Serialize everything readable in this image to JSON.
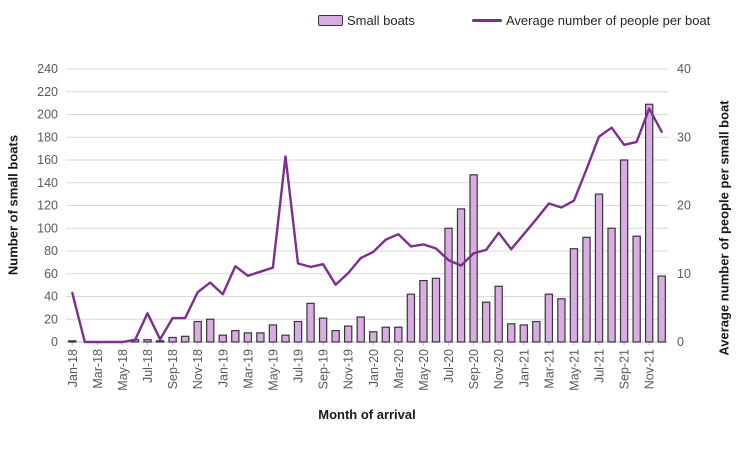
{
  "legend": {
    "bars_label": "Small boats",
    "line_label": "Average number of people per boat"
  },
  "axes": {
    "left_title": "Number of small boats",
    "right_title": "Average number of people per small boat",
    "x_title": "Month of arrival",
    "left_tick_labels": [
      "0",
      "20",
      "40",
      "60",
      "80",
      "100",
      "120",
      "140",
      "160",
      "180",
      "200",
      "220",
      "240"
    ],
    "right_tick_labels": [
      "0",
      "10",
      "20",
      "30",
      "40"
    ],
    "left_max": 240,
    "right_max": 40,
    "grid": "horizontal"
  },
  "colors": {
    "bar_fill": "#d8aee0",
    "bar_stroke": "#3a3340",
    "line": "#7d2e8e",
    "gridline": "#d9d9d9",
    "axis_line": "#bfbfbf",
    "tick_text": "#595959",
    "background": "#ffffff"
  },
  "chart_data": {
    "type": "bar",
    "subtype": "bar+line combo, dual axis",
    "title": "",
    "xlabel": "Month of arrival",
    "ylabel_left": "Number of small boats",
    "ylabel_right": "Average number of people per small boat",
    "ylim_left": [
      0,
      240
    ],
    "ylim_right": [
      0,
      40
    ],
    "legend_position": "top",
    "categories": [
      "Jan-18",
      "Feb-18",
      "Mar-18",
      "Apr-18",
      "May-18",
      "Jun-18",
      "Jul-18",
      "Aug-18",
      "Sep-18",
      "Oct-18",
      "Nov-18",
      "Dec-18",
      "Jan-19",
      "Feb-19",
      "Mar-19",
      "Apr-19",
      "May-19",
      "Jun-19",
      "Jul-19",
      "Aug-19",
      "Sep-19",
      "Oct-19",
      "Nov-19",
      "Dec-19",
      "Jan-20",
      "Feb-20",
      "Mar-20",
      "Apr-20",
      "May-20",
      "Jun-20",
      "Jul-20",
      "Aug-20",
      "Sep-20",
      "Oct-20",
      "Nov-20",
      "Dec-20",
      "Jan-21",
      "Feb-21",
      "Mar-21",
      "Apr-21",
      "May-21",
      "Jun-21",
      "Jul-21",
      "Aug-21",
      "Sep-21",
      "Oct-21",
      "Nov-21",
      "Dec-21"
    ],
    "x_tick_labels": [
      "Jan-18",
      "Mar-18",
      "May-18",
      "Jul-18",
      "Sep-18",
      "Nov-18",
      "Jan-19",
      "Mar-19",
      "May-19",
      "Jul-19",
      "Sep-19",
      "Nov-19",
      "Jan-20",
      "Mar-20",
      "May-20",
      "Jul-20",
      "Sep-20",
      "Nov-20",
      "Jan-21",
      "Mar-21",
      "May-21",
      "Jul-21",
      "Sep-21",
      "Nov-21"
    ],
    "series": [
      {
        "name": "Small boats",
        "type": "bar",
        "axis": "left",
        "values": [
          1,
          0,
          0,
          0,
          0,
          2,
          2,
          1,
          4,
          5,
          18,
          20,
          6,
          10,
          8,
          8,
          15,
          6,
          18,
          34,
          21,
          10,
          14,
          22,
          9,
          13,
          13,
          42,
          54,
          56,
          100,
          117,
          147,
          35,
          49,
          16,
          15,
          18,
          42,
          38,
          82,
          92,
          130,
          100,
          160,
          93,
          209,
          58
        ]
      },
      {
        "name": "Average number of people per boat",
        "type": "line",
        "axis": "right",
        "values": [
          7.2,
          0,
          0,
          0,
          0,
          0.3,
          4.2,
          0.4,
          3.5,
          3.5,
          7.3,
          8.7,
          7.0,
          11.1,
          9.7,
          10.3,
          10.9,
          27.2,
          11.5,
          11.0,
          11.4,
          8.4,
          10.1,
          12.3,
          13.2,
          15.0,
          15.8,
          14.0,
          14.3,
          13.7,
          12.0,
          11.2,
          13.0,
          13.5,
          16.0,
          13.6,
          15.8,
          18.0,
          20.3,
          19.7,
          20.7,
          25.3,
          30.1,
          31.4,
          28.9,
          29.3,
          34.2,
          30.8
        ]
      }
    ]
  }
}
